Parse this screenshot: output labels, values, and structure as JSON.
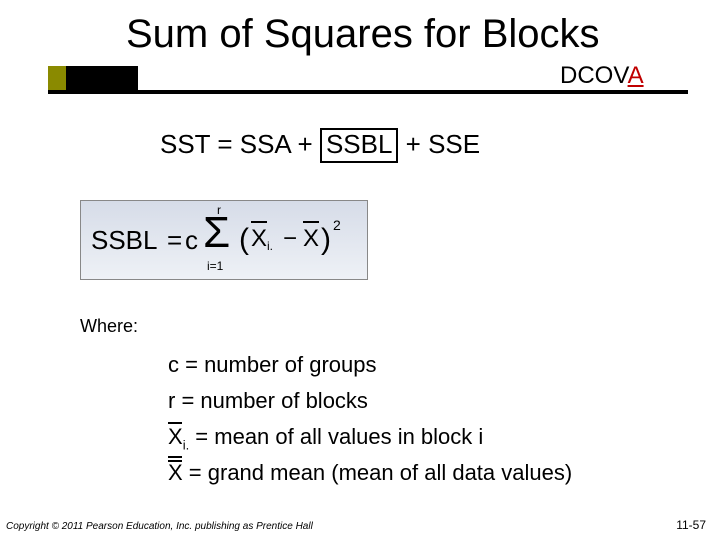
{
  "accent": {
    "olive": "#8a8a00"
  },
  "title": "Sum of Squares for Blocks",
  "dcova": {
    "prefix": "DCOV",
    "red": "A"
  },
  "eq": {
    "lhs": "SST = SSA + ",
    "boxed": "SSBL",
    "rhs": " + SSE"
  },
  "formula": {
    "ssbl": "SSBL",
    "eq": "=",
    "c": "c",
    "sigma": "Σ",
    "sum_top": "r",
    "sum_bot": "i=1",
    "lparen": "(",
    "xi": "X",
    "xi_sub": "i.",
    "minus": "−",
    "x": "X",
    "rparen": ")",
    "sq": "2"
  },
  "where_label": "Where:",
  "defs": {
    "c": "c = number of groups",
    "r": "r = number of blocks",
    "xi_pre": "X",
    "xi_sub": "i.",
    "xi_post": " = mean of all values in block i",
    "xg_pre": "X",
    "xg_post": " = grand mean (mean of all data values)"
  },
  "copyright": "Copyright © 2011 Pearson Education, Inc. publishing as Prentice Hall",
  "pageno": "11-57"
}
